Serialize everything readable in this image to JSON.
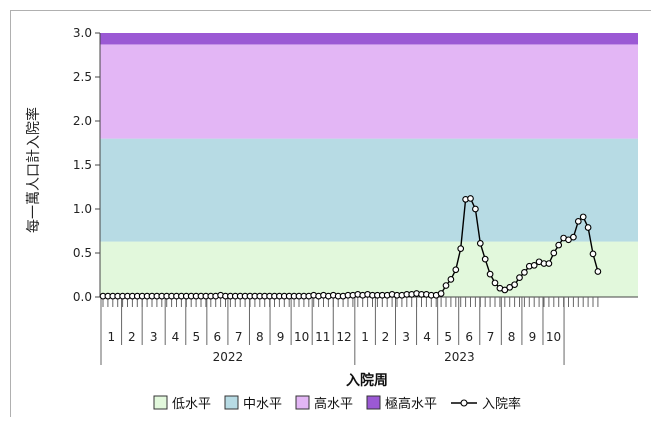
{
  "chart_data": {
    "type": "line",
    "xlabel": "入院周",
    "ylabel": "每一萬人口計入院率",
    "ylim": [
      0,
      3.0
    ],
    "y_ticks": [
      "0.0",
      "0.5",
      "1.0",
      "1.5",
      "2.0",
      "2.5",
      "3.0"
    ],
    "grid": false,
    "legend_position": "bottom",
    "bands": [
      {
        "name": "低水平",
        "from": 0,
        "to": 0.63,
        "color": "#e2f8dc"
      },
      {
        "name": "中水平",
        "from": 0.63,
        "to": 1.8,
        "color": "#b7dbe4"
      },
      {
        "name": "高水平",
        "from": 1.8,
        "to": 2.87,
        "color": "#e3b6f5"
      },
      {
        "name": "極高水平",
        "from": 2.87,
        "to": 3.0,
        "color": "#9b59d4"
      }
    ],
    "years": [
      {
        "label": "2022",
        "months": [
          "1",
          "2",
          "3",
          "4",
          "5",
          "6",
          "7",
          "8",
          "9",
          "10",
          "11",
          "12"
        ]
      },
      {
        "label": "2023",
        "months": [
          "1",
          "2",
          "3",
          "4",
          "5",
          "6",
          "7",
          "8",
          "9",
          "10"
        ]
      }
    ],
    "series": [
      {
        "name": "入院率",
        "color": "#000000",
        "values": [
          0.01,
          0.01,
          0.01,
          0.01,
          0.01,
          0.01,
          0.01,
          0.01,
          0.01,
          0.01,
          0.01,
          0.01,
          0.01,
          0.01,
          0.01,
          0.01,
          0.01,
          0.01,
          0.01,
          0.01,
          0.01,
          0.01,
          0.01,
          0.01,
          0.02,
          0.01,
          0.01,
          0.01,
          0.01,
          0.01,
          0.01,
          0.01,
          0.01,
          0.01,
          0.01,
          0.01,
          0.01,
          0.01,
          0.01,
          0.01,
          0.01,
          0.01,
          0.01,
          0.02,
          0.01,
          0.02,
          0.01,
          0.02,
          0.01,
          0.01,
          0.02,
          0.02,
          0.03,
          0.02,
          0.03,
          0.02,
          0.02,
          0.02,
          0.02,
          0.03,
          0.02,
          0.02,
          0.03,
          0.03,
          0.04,
          0.03,
          0.03,
          0.02,
          0.02,
          0.04,
          0.13,
          0.2,
          0.31,
          0.55,
          1.11,
          1.12,
          1.0,
          0.61,
          0.43,
          0.26,
          0.16,
          0.1,
          0.08,
          0.11,
          0.14,
          0.22,
          0.28,
          0.35,
          0.36,
          0.4,
          0.38,
          0.38,
          0.5,
          0.59,
          0.67,
          0.65,
          0.68,
          0.86,
          0.91,
          0.79,
          0.49,
          0.29
        ]
      }
    ]
  }
}
